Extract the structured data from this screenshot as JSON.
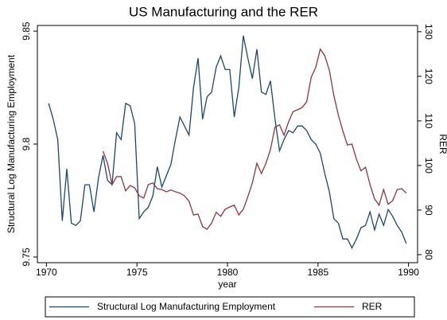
{
  "chart_data": {
    "type": "line",
    "title": "US Manufacturing and the RER",
    "x_label": "year",
    "y_label": "Structural Log Manufacturing Employment",
    "y2_label": "RER",
    "x": [
      1970.125,
      1970.375,
      1970.625,
      1970.875,
      1971.125,
      1971.375,
      1971.625,
      1971.875,
      1972.125,
      1972.375,
      1972.625,
      1972.875,
      1973.125,
      1973.375,
      1973.625,
      1973.875,
      1974.125,
      1974.375,
      1974.625,
      1974.875,
      1975.125,
      1975.375,
      1975.625,
      1975.875,
      1976.125,
      1976.375,
      1976.625,
      1976.875,
      1977.125,
      1977.375,
      1977.625,
      1977.875,
      1978.125,
      1978.375,
      1978.625,
      1978.875,
      1979.125,
      1979.375,
      1979.625,
      1979.875,
      1980.125,
      1980.375,
      1980.625,
      1980.875,
      1981.125,
      1981.375,
      1981.625,
      1981.875,
      1982.125,
      1982.375,
      1982.625,
      1982.875,
      1983.125,
      1983.375,
      1983.625,
      1983.875,
      1984.125,
      1984.375,
      1984.625,
      1984.875,
      1985.125,
      1985.375,
      1985.625,
      1985.875,
      1986.125,
      1986.375,
      1986.625,
      1986.875,
      1987.125,
      1987.375,
      1987.625,
      1987.875,
      1988.125,
      1988.375,
      1988.625,
      1988.875,
      1989.125,
      1989.375,
      1989.625,
      1989.875
    ],
    "series": [
      {
        "name": "Structural Log Manufacturing Employment",
        "color": "#1a476f",
        "axis": "y",
        "values": [
          9.818,
          9.811,
          9.802,
          9.766,
          9.789,
          9.765,
          9.764,
          9.766,
          9.782,
          9.782,
          9.77,
          9.785,
          9.795,
          9.784,
          9.782,
          9.805,
          9.802,
          9.818,
          9.817,
          9.809,
          9.767,
          9.77,
          9.772,
          9.777,
          9.79,
          9.781,
          9.786,
          9.791,
          9.802,
          9.812,
          9.808,
          9.804,
          9.825,
          9.838,
          9.811,
          9.821,
          9.823,
          9.834,
          9.839,
          9.833,
          9.833,
          9.812,
          9.825,
          9.848,
          9.838,
          9.829,
          9.842,
          9.823,
          9.822,
          9.828,
          9.811,
          9.797,
          9.802,
          9.806,
          9.805,
          9.808,
          9.808,
          9.806,
          9.802,
          9.8,
          9.796,
          9.787,
          9.779,
          9.767,
          9.765,
          9.758,
          9.758,
          9.754,
          9.758,
          9.763,
          9.764,
          9.77,
          9.762,
          9.769,
          9.764,
          9.771,
          9.768,
          9.764,
          9.761,
          9.756
        ]
      },
      {
        "name": "RER",
        "color": "#90353b",
        "axis": "y2",
        "values": [
          null,
          null,
          null,
          null,
          null,
          null,
          null,
          null,
          null,
          null,
          null,
          null,
          103.2,
          100.5,
          95.7,
          97.5,
          97.5,
          94.3,
          95.5,
          95.0,
          93.2,
          92.7,
          95.7,
          96.1,
          94.8,
          94.6,
          94.1,
          94.5,
          94.1,
          93.8,
          93.2,
          92.0,
          88.9,
          89.1,
          86.3,
          85.7,
          87.1,
          89.5,
          88.6,
          90.2,
          90.7,
          91.1,
          88.9,
          90.2,
          93.0,
          96.1,
          100.5,
          98.2,
          100.5,
          103.6,
          108.6,
          109.1,
          106.8,
          109.8,
          112.1,
          112.5,
          113.0,
          114.3,
          119.8,
          122.0,
          126.1,
          124.6,
          121.4,
          115.7,
          111.3,
          107.7,
          104.6,
          104.8,
          101.4,
          98.8,
          99.6,
          95.7,
          92.5,
          91.1,
          94.6,
          91.3,
          92.1,
          94.6,
          94.8,
          93.8
        ]
      }
    ],
    "xlim": [
      1969.5,
      1990.5
    ],
    "xticks": [
      1970,
      1975,
      1980,
      1985,
      1990
    ],
    "ylim": [
      9.7475,
      9.8525
    ],
    "yticks": [
      9.75,
      9.8,
      9.85
    ],
    "y2lim": [
      78.2,
      131.4
    ],
    "y2ticks": [
      80,
      90,
      100,
      110,
      120,
      130
    ],
    "grid": false,
    "legend": "bottom"
  }
}
